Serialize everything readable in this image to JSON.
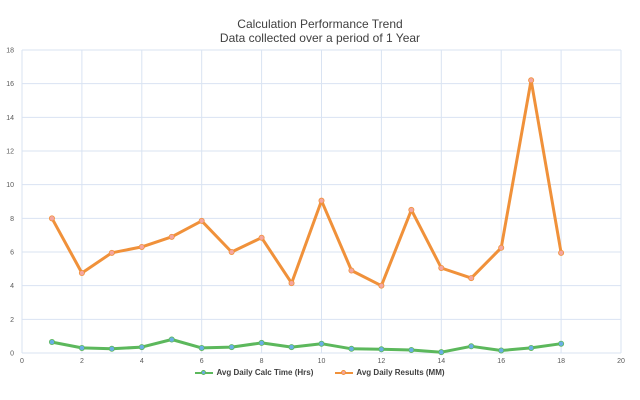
{
  "chart_data": {
    "type": "line",
    "title": "Calculation Performance Trend",
    "subtitle": "Data collected over a period of 1 Year",
    "xlim": [
      0,
      20
    ],
    "ylim": [
      0,
      18
    ],
    "x_ticks": [
      0,
      2,
      4,
      6,
      8,
      10,
      12,
      14,
      16,
      18,
      20
    ],
    "y_ticks": [
      0,
      2,
      4,
      6,
      8,
      10,
      12,
      14,
      16,
      18
    ],
    "grid": true,
    "legend_position": "bottom",
    "series": [
      {
        "name": "Avg Daily Calc Time (Hrs)",
        "line_color": "#5cb85c",
        "marker_color": "#6aaee6",
        "x": [
          1,
          2,
          3,
          4,
          5,
          6,
          7,
          8,
          9,
          10,
          11,
          12,
          13,
          14,
          15,
          16,
          17,
          18
        ],
        "values": [
          0.65,
          0.3,
          0.25,
          0.35,
          0.8,
          0.3,
          0.35,
          0.6,
          0.35,
          0.55,
          0.25,
          0.22,
          0.18,
          0.05,
          0.4,
          0.15,
          0.3,
          0.55
        ]
      },
      {
        "name": "Avg Daily Results (MM)",
        "line_color": "#f0913a",
        "marker_color": "#f4a6a0",
        "x": [
          1,
          2,
          3,
          4,
          5,
          6,
          7,
          8,
          9,
          10,
          11,
          12,
          13,
          14,
          15,
          16,
          17,
          18
        ],
        "values": [
          8.0,
          4.75,
          5.95,
          6.3,
          6.9,
          7.85,
          6.0,
          6.85,
          4.15,
          9.05,
          4.9,
          4.0,
          8.5,
          5.05,
          4.45,
          6.25,
          16.2,
          5.95
        ]
      }
    ]
  }
}
